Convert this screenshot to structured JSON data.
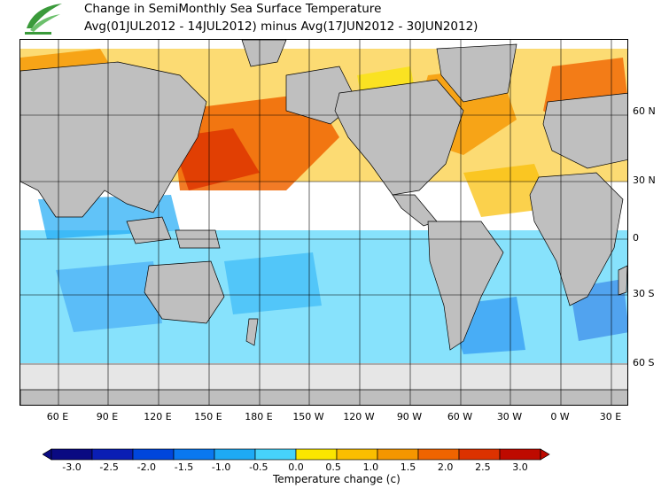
{
  "header": {
    "title_line1": "Change in SemiMonthly Sea Surface Temperature",
    "title_line2": "Avg(01JUL2012 - 14JUL2012) minus Avg(17JUN2012 - 30JUN2012)"
  },
  "map": {
    "lat_labels": [
      "60 N",
      "30 N",
      "0",
      "30 S",
      "60 S"
    ],
    "lon_labels": [
      "60 E",
      "90 E",
      "120 E",
      "150 E",
      "180 E",
      "150 W",
      "120 W",
      "90 W",
      "60 W",
      "30 W",
      "0 W",
      "30 E"
    ]
  },
  "colorbar": {
    "title": "Temperature change  (c)",
    "tick_labels": [
      "-3.0",
      "-2.5",
      "-2.0",
      "-1.5",
      "-1.0",
      "-0.5",
      "0.0",
      "0.5",
      "1.0",
      "1.5",
      "2.0",
      "2.5",
      "3.0"
    ],
    "colors": [
      "#0a0a82",
      "#0a1eb4",
      "#0046dc",
      "#0a78f0",
      "#1eaaf5",
      "#46d2fa",
      "#ffffff",
      "#fae600",
      "#fabe00",
      "#f59600",
      "#f06400",
      "#dc3200",
      "#be0a00"
    ]
  },
  "colors": {
    "land": "#bfbfbf",
    "ice": "#e6e6e6",
    "ocean_neutral": "#ffffff"
  }
}
